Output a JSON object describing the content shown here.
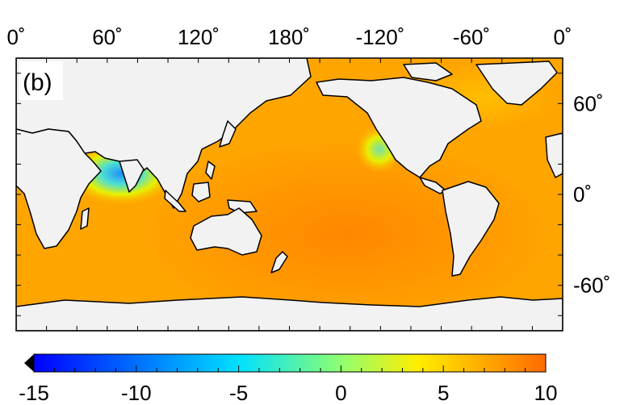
{
  "panel_label": "(b)",
  "lon_ticks": [
    "0˚",
    "60˚",
    "120˚",
    "180˚",
    "-120˚",
    "-60˚",
    "0˚"
  ],
  "lat_ticks": [
    "60˚",
    "0˚",
    "-60˚"
  ],
  "colorbar": {
    "min": -15,
    "max": 10,
    "ticks": [
      "-15",
      "-10",
      "-5",
      "0",
      "5",
      "10"
    ],
    "extend": "min",
    "colormap": [
      "#0000ff",
      "#00a0ff",
      "#00ffff",
      "#80ff80",
      "#ffff00",
      "#ffa000",
      "#ff6a00"
    ]
  },
  "colors": {
    "land": "#f2f2f2",
    "ocean_base": "#ffa500",
    "coast": "#000000"
  }
}
